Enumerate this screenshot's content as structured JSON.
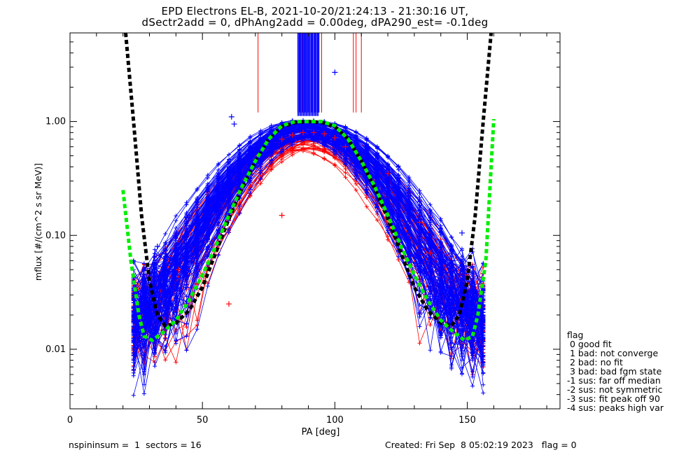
{
  "title_line1": "EPD Electrons EL-B, 2021-10-20/21:24:13 - 21:30:16 UT,",
  "title_line2": "dSectr2add = 0, dPhAng2add = 0.00deg, dPA290_est=  -0.1deg",
  "legend": {
    "title": "flag",
    "items": [
      " 0 good fit",
      " 1 bad: not converge",
      " 2 bad: no fit",
      " 3 bad: bad fgm state",
      "-1 sus: far off median",
      "-2 sus: not symmetric",
      "-3 sus: fit peak off 90",
      "-4 sus: peaks high var"
    ]
  },
  "footer": {
    "left": "nspininsum =  1  sectors = 16",
    "right": "Created: Fri Sep  8 05:02:19 2023   flag = 0"
  },
  "colors": {
    "series_a": "#0000ff",
    "series_b": "#ff0000",
    "fit_black": "#000000",
    "fit_green": "#00ee00"
  },
  "chart_data": {
    "type": "scatter",
    "xlabel": "PA [deg]",
    "ylabel": "mflux [#/(cm^2 s sr MeV)]",
    "xlim": [
      0,
      185
    ],
    "ylim": [
      0.003,
      6.0
    ],
    "ylog": true,
    "xticks": [
      "0",
      "50",
      "100",
      "150"
    ],
    "yticks": [
      "0.01",
      "0.10",
      "1.00"
    ],
    "blue_peak": {
      "x": [
        80,
        84,
        88,
        92,
        96,
        100,
        104
      ],
      "y": [
        0.82,
        0.9,
        0.97,
        0.98,
        0.96,
        0.9,
        0.78
      ]
    },
    "red_peak": {
      "x": [
        80,
        84,
        88,
        92,
        96,
        100,
        104
      ],
      "y": [
        0.7,
        0.76,
        0.8,
        0.8,
        0.78,
        0.72,
        0.6
      ]
    },
    "blue_outliers": {
      "x": [
        33,
        45,
        61,
        62,
        100,
        120,
        148,
        155
      ],
      "y": [
        0.08,
        0.15,
        1.1,
        0.95,
        2.7,
        0.3,
        0.105,
        0.02
      ]
    },
    "red_outliers": {
      "x": [
        41,
        60,
        80,
        120,
        132,
        136,
        150
      ],
      "y": [
        0.05,
        0.025,
        0.15,
        0.35,
        0.13,
        0.07,
        0.045
      ]
    },
    "vlines": {
      "red_x": [
        71,
        86,
        87.5,
        89,
        90.5,
        92,
        93.5,
        95,
        107,
        108,
        110
      ],
      "blue_x": [
        86.5,
        87,
        88,
        88.5,
        89.5,
        90,
        91,
        91.5,
        92.5,
        93,
        94
      ],
      "y_from": 1.2,
      "y_to": 6.0
    },
    "fit_black": {
      "x": [
        21,
        24,
        27,
        30,
        33,
        36,
        40,
        45,
        50,
        55,
        60,
        65,
        70,
        75,
        80,
        85,
        90,
        95,
        100,
        105,
        110,
        115,
        120,
        125,
        130,
        135,
        140,
        144,
        147,
        150,
        153,
        156,
        159
      ],
      "y": [
        6.0,
        1.0,
        0.15,
        0.04,
        0.02,
        0.016,
        0.017,
        0.022,
        0.035,
        0.07,
        0.14,
        0.26,
        0.45,
        0.7,
        0.9,
        0.98,
        1.0,
        0.98,
        0.9,
        0.7,
        0.45,
        0.26,
        0.14,
        0.07,
        0.035,
        0.022,
        0.017,
        0.016,
        0.02,
        0.04,
        0.15,
        1.0,
        6.0
      ]
    },
    "fit_green": {
      "x": [
        20,
        23,
        26,
        28,
        31,
        35,
        40,
        45,
        50,
        55,
        60,
        65,
        70,
        75,
        80,
        85,
        90,
        95,
        100,
        105,
        110,
        115,
        120,
        125,
        130,
        135,
        140,
        145,
        149,
        152,
        154,
        157,
        160
      ],
      "y": [
        0.25,
        0.06,
        0.02,
        0.013,
        0.012,
        0.014,
        0.018,
        0.027,
        0.045,
        0.08,
        0.15,
        0.27,
        0.45,
        0.7,
        0.92,
        1.0,
        1.0,
        1.0,
        0.92,
        0.7,
        0.45,
        0.27,
        0.15,
        0.08,
        0.045,
        0.027,
        0.018,
        0.014,
        0.012,
        0.013,
        0.02,
        0.06,
        1.05
      ]
    }
  }
}
